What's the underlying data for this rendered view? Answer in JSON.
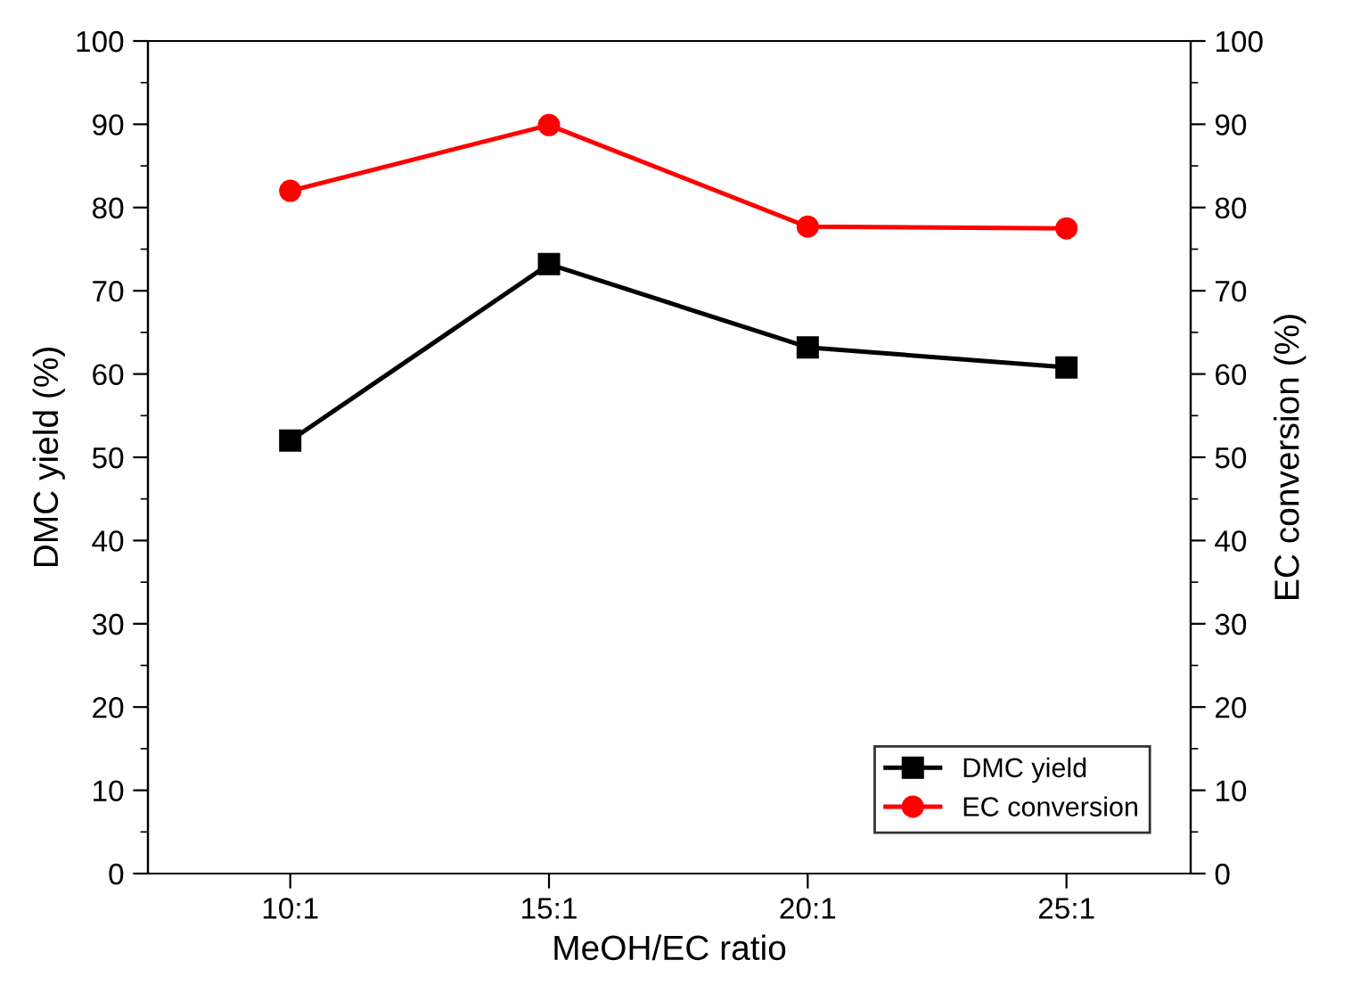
{
  "chart_data": {
    "type": "line",
    "xlabel": "MeOH/EC ratio",
    "ylabel": "DMC yield (%)",
    "y2label": "EC conversion (%)",
    "categories": [
      "10:1",
      "15:1",
      "20:1",
      "25:1"
    ],
    "series": [
      {
        "name": "DMC yield",
        "color": "#000000",
        "marker": "square",
        "values": [
          52.0,
          73.2,
          63.2,
          60.8
        ]
      },
      {
        "name": "EC conversion",
        "color": "#ff0000",
        "marker": "circle",
        "values": [
          82.0,
          89.9,
          77.7,
          77.5
        ]
      }
    ],
    "ylim": [
      0,
      100
    ],
    "yticks": [
      0,
      10,
      20,
      30,
      40,
      50,
      60,
      70,
      80,
      90,
      100
    ],
    "y2lim": [
      0,
      100
    ],
    "y2ticks": [
      0,
      10,
      20,
      30,
      40,
      50,
      60,
      70,
      80,
      90,
      100
    ],
    "legend": "bottom right",
    "grid": false,
    "line_style": "solid"
  }
}
